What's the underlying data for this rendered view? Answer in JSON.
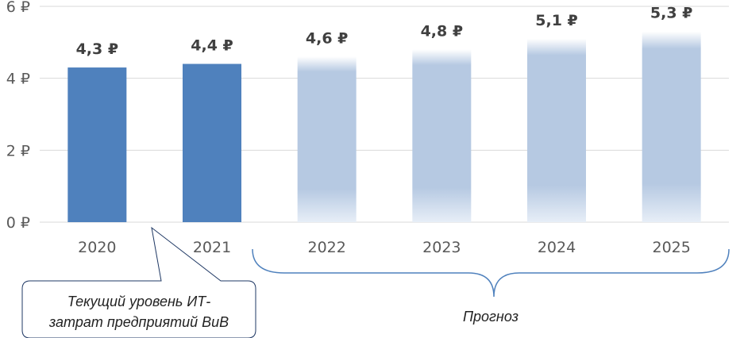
{
  "chart_data": {
    "type": "bar",
    "categories": [
      "2020",
      "2021",
      "2022",
      "2023",
      "2024",
      "2025"
    ],
    "values": [
      4.3,
      4.4,
      4.6,
      4.8,
      5.1,
      5.3
    ],
    "data_labels": [
      "4,3 ₽",
      "4,4 ₽",
      "4,6 ₽",
      "4,8 ₽",
      "5,1 ₽",
      "5,3 ₽"
    ],
    "forecast": [
      false,
      false,
      true,
      true,
      true,
      true
    ],
    "yticks": [
      0,
      2,
      4,
      6
    ],
    "ytick_labels": [
      "0 ₽",
      "2 ₽",
      "4 ₽",
      "6 ₽"
    ],
    "ylim": [
      0,
      6
    ],
    "grid": true,
    "title": "",
    "xlabel": "",
    "ylabel": "",
    "colors": {
      "actual": "#4f81bd",
      "forecast": "#b6c9e2",
      "grid": "#d9d9d9",
      "bracket": "#4f81bd"
    },
    "annotations": {
      "current_level": [
        "Текущий уровень ИТ-",
        "затрат предприятий ВиВ"
      ],
      "forecast_label": "Прогноз"
    }
  }
}
